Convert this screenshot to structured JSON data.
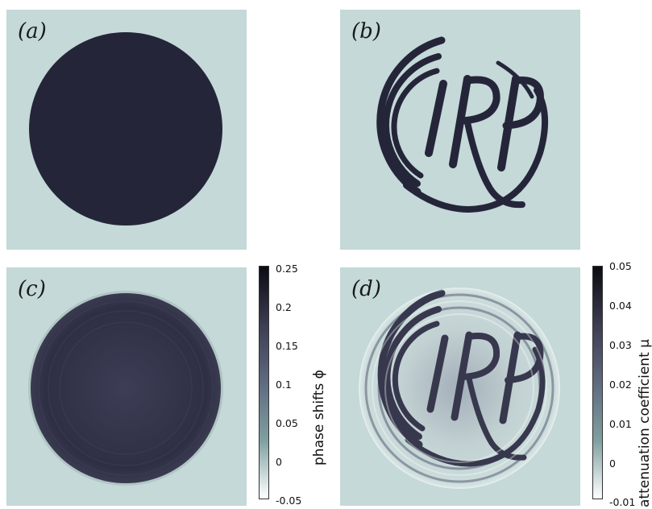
{
  "panels": [
    {
      "label": "(a)",
      "content": "disk phantom"
    },
    {
      "label": "(b)",
      "content": "IRP logo phantom"
    },
    {
      "label": "(c)",
      "content": "phase reconstruction"
    },
    {
      "label": "(d)",
      "content": "attenuation reconstruction"
    }
  ],
  "colorbars": [
    {
      "label": "phase shifts ϕ",
      "ticks": [
        "0.25",
        "0.2",
        "0.15",
        "0.1",
        "0.05",
        "0",
        "-0.05"
      ]
    },
    {
      "label": "attenuation coefficient μ",
      "ticks": [
        "0.05",
        "0.04",
        "0.03",
        "0.02",
        "0.01",
        "0",
        "-0.01"
      ]
    }
  ],
  "logo_text": "IRP",
  "colors": {
    "background": "#c4d9d8",
    "dark": "#25253a",
    "reconstruction": "#37384d"
  }
}
